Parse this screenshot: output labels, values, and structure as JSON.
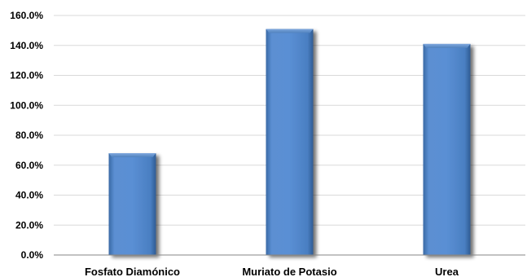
{
  "chart_data": {
    "type": "bar",
    "categories": [
      "Fosfato Diamónico",
      "Muriato de Potasio",
      "Urea"
    ],
    "values": [
      68.0,
      151.0,
      141.0
    ],
    "unit": "%",
    "ylim": [
      0,
      160
    ],
    "yticks": [
      0,
      20,
      40,
      60,
      80,
      100,
      120,
      140,
      160
    ],
    "ytick_labels": [
      "0.0%",
      "20.0%",
      "40.0%",
      "60.0%",
      "80.0%",
      "100.0%",
      "120.0%",
      "140.0%",
      "160.0%"
    ],
    "grid": true,
    "legend": "none",
    "bar_color": "#4f81bd"
  }
}
